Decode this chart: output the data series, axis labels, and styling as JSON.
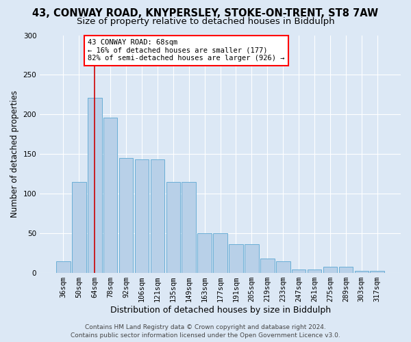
{
  "title1": "43, CONWAY ROAD, KNYPERSLEY, STOKE-ON-TRENT, ST8 7AW",
  "title2": "Size of property relative to detached houses in Biddulph",
  "xlabel": "Distribution of detached houses by size in Biddulph",
  "ylabel": "Number of detached properties",
  "categories": [
    "36sqm",
    "50sqm",
    "64sqm",
    "78sqm",
    "92sqm",
    "106sqm",
    "121sqm",
    "135sqm",
    "149sqm",
    "163sqm",
    "177sqm",
    "191sqm",
    "205sqm",
    "219sqm",
    "233sqm",
    "247sqm",
    "261sqm",
    "275sqm",
    "289sqm",
    "303sqm",
    "317sqm"
  ],
  "values": [
    15,
    115,
    221,
    196,
    145,
    143,
    143,
    115,
    115,
    50,
    50,
    36,
    36,
    18,
    15,
    4,
    4,
    8,
    8,
    3,
    3
  ],
  "bar_color": "#b8d0e8",
  "bar_edge_color": "#6aaed6",
  "red_line_index": 2,
  "annotation_text": "43 CONWAY ROAD: 68sqm\n← 16% of detached houses are smaller (177)\n82% of semi-detached houses are larger (926) →",
  "annotation_box_color": "white",
  "annotation_box_edge_color": "red",
  "red_line_color": "#cc0000",
  "ylim": [
    0,
    300
  ],
  "yticks": [
    0,
    50,
    100,
    150,
    200,
    250,
    300
  ],
  "footer": "Contains HM Land Registry data © Crown copyright and database right 2024.\nContains public sector information licensed under the Open Government Licence v3.0.",
  "background_color": "#dce8f5",
  "plot_bg_color": "#dce8f5",
  "title1_fontsize": 10.5,
  "title2_fontsize": 9.5,
  "xlabel_fontsize": 9,
  "ylabel_fontsize": 8.5,
  "tick_fontsize": 7.5,
  "annotation_fontsize": 7.5,
  "footer_fontsize": 6.5
}
